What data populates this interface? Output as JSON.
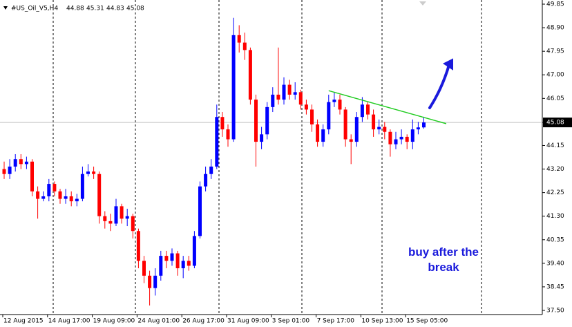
{
  "chart_data": {
    "type": "candlestick",
    "symbol": "#US_Oil_V5,H4",
    "categories": [
      "12 Aug 2015",
      null,
      null,
      null,
      null,
      null,
      null,
      null,
      "14 Aug 17:00",
      null,
      null,
      null,
      null,
      null,
      null,
      null,
      "19 Aug 09:00",
      null,
      null,
      null,
      null,
      null,
      null,
      null,
      "24 Aug 01:00",
      null,
      null,
      null,
      null,
      null,
      null,
      null,
      "26 Aug 17:00",
      null,
      null,
      null,
      null,
      null,
      null,
      null,
      "31 Aug 09:00",
      null,
      null,
      null,
      null,
      null,
      null,
      null,
      "3 Sep 01:00",
      null,
      null,
      null,
      null,
      null,
      null,
      null,
      "7 Sep 17:00",
      null,
      null,
      null,
      null,
      null,
      null,
      null,
      "10 Sep 13:00",
      null,
      null,
      null,
      null,
      null,
      null,
      null,
      "15 Sep 05:00",
      null,
      null,
      null
    ],
    "open": [
      43.2,
      43.0,
      43.3,
      43.6,
      43.4,
      43.5,
      42.3,
      42.0,
      42.1,
      42.6,
      42.3,
      42.0,
      42.1,
      41.9,
      42.0,
      43.0,
      43.1,
      43.0,
      41.3,
      41.1,
      41.0,
      41.7,
      41.2,
      41.3,
      40.7,
      39.5,
      38.9,
      38.4,
      38.9,
      39.7,
      39.5,
      39.8,
      39.2,
      39.5,
      39.3,
      40.5,
      42.5,
      43.0,
      43.3,
      45.3,
      44.8,
      44.4,
      48.6,
      48.3,
      48.0,
      46.0,
      44.3,
      44.6,
      45.7,
      46.2,
      46.0,
      46.6,
      46.2,
      46.3,
      45.8,
      45.6,
      45.0,
      44.3,
      44.8,
      45.9,
      46.0,
      45.6,
      44.4,
      44.3,
      45.3,
      45.8,
      45.4,
      44.8,
      44.9,
      44.7,
      44.2,
      44.4,
      44.5,
      44.3,
      44.8,
      44.88
    ],
    "high": [
      43.5,
      43.6,
      43.8,
      43.8,
      43.7,
      43.6,
      42.5,
      42.3,
      42.8,
      42.7,
      42.4,
      42.4,
      42.3,
      42.2,
      43.3,
      43.4,
      43.3,
      43.1,
      41.5,
      41.4,
      42.0,
      41.8,
      41.6,
      41.4,
      40.8,
      39.7,
      39.1,
      39.2,
      39.9,
      39.9,
      40.0,
      39.9,
      39.7,
      39.7,
      40.7,
      42.7,
      43.3,
      43.6,
      45.8,
      45.5,
      45.0,
      49.3,
      49.0,
      48.7,
      48.1,
      46.2,
      44.9,
      45.9,
      46.5,
      48.1,
      46.9,
      46.8,
      46.7,
      46.4,
      46.0,
      45.8,
      45.2,
      45.0,
      46.2,
      46.3,
      46.2,
      45.7,
      44.6,
      45.5,
      46.1,
      45.9,
      45.6,
      45.2,
      45.1,
      44.8,
      44.7,
      44.8,
      44.6,
      45.2,
      45.1,
      45.31
    ],
    "low": [
      42.8,
      42.8,
      43.1,
      43.2,
      43.2,
      42.1,
      41.2,
      41.9,
      41.9,
      42.1,
      41.8,
      41.8,
      41.7,
      41.7,
      41.9,
      42.9,
      42.8,
      41.0,
      40.8,
      40.7,
      40.9,
      41.0,
      40.9,
      40.4,
      39.2,
      38.6,
      37.7,
      38.1,
      38.7,
      39.2,
      39.3,
      38.9,
      38.8,
      39.1,
      39.2,
      40.4,
      42.3,
      42.8,
      43.2,
      44.5,
      44.1,
      44.3,
      47.9,
      47.6,
      45.8,
      43.3,
      44.0,
      44.4,
      45.5,
      45.8,
      45.8,
      46.0,
      46.0,
      45.6,
      45.4,
      44.7,
      44.1,
      44.1,
      44.6,
      45.7,
      45.4,
      44.1,
      43.4,
      44.1,
      45.1,
      45.2,
      44.5,
      44.6,
      44.4,
      43.7,
      44.0,
      44.2,
      44.0,
      44.0,
      44.6,
      44.83
    ],
    "close": [
      43.0,
      43.3,
      43.6,
      43.4,
      43.5,
      42.3,
      42.0,
      42.1,
      42.6,
      42.3,
      42.0,
      42.1,
      41.9,
      42.0,
      43.0,
      43.1,
      43.0,
      41.3,
      41.1,
      41.0,
      41.7,
      41.2,
      41.3,
      40.7,
      39.5,
      38.9,
      38.4,
      38.9,
      39.7,
      39.5,
      39.8,
      39.2,
      39.5,
      39.3,
      40.5,
      42.5,
      43.0,
      43.3,
      45.3,
      44.8,
      44.4,
      48.6,
      48.3,
      48.0,
      46.0,
      44.3,
      44.6,
      45.7,
      46.2,
      46.0,
      46.6,
      46.2,
      46.3,
      45.8,
      45.6,
      45.0,
      44.3,
      44.8,
      45.9,
      46.0,
      45.6,
      44.4,
      44.3,
      45.3,
      45.8,
      45.4,
      44.8,
      44.9,
      44.7,
      44.2,
      44.4,
      44.5,
      44.3,
      44.8,
      44.88,
      45.08
    ],
    "up_color": "#0000ff",
    "down_color": "#ff0000",
    "ylim": [
      37.5,
      49.85
    ],
    "yticks": [
      49.85,
      {
        "value": 48.9,
        "label": "48.90"
      },
      47.95,
      {
        "value": 47.0,
        "label": "47.00"
      },
      46.05,
      45.08,
      44.15,
      {
        "value": 43.2,
        "label": "43.20"
      },
      42.25,
      {
        "value": 41.3,
        "label": "41.30"
      },
      40.35,
      {
        "value": 39.4,
        "label": "39.40"
      },
      38.45,
      {
        "value": 37.5,
        "label": "37.50"
      }
    ],
    "current_price": 45.08,
    "trendline": {
      "color": "#22cc22",
      "points": [
        [
          58,
          46.36
        ],
        [
          79,
          45.03
        ]
      ]
    },
    "annotation": "buy after the break"
  }
}
